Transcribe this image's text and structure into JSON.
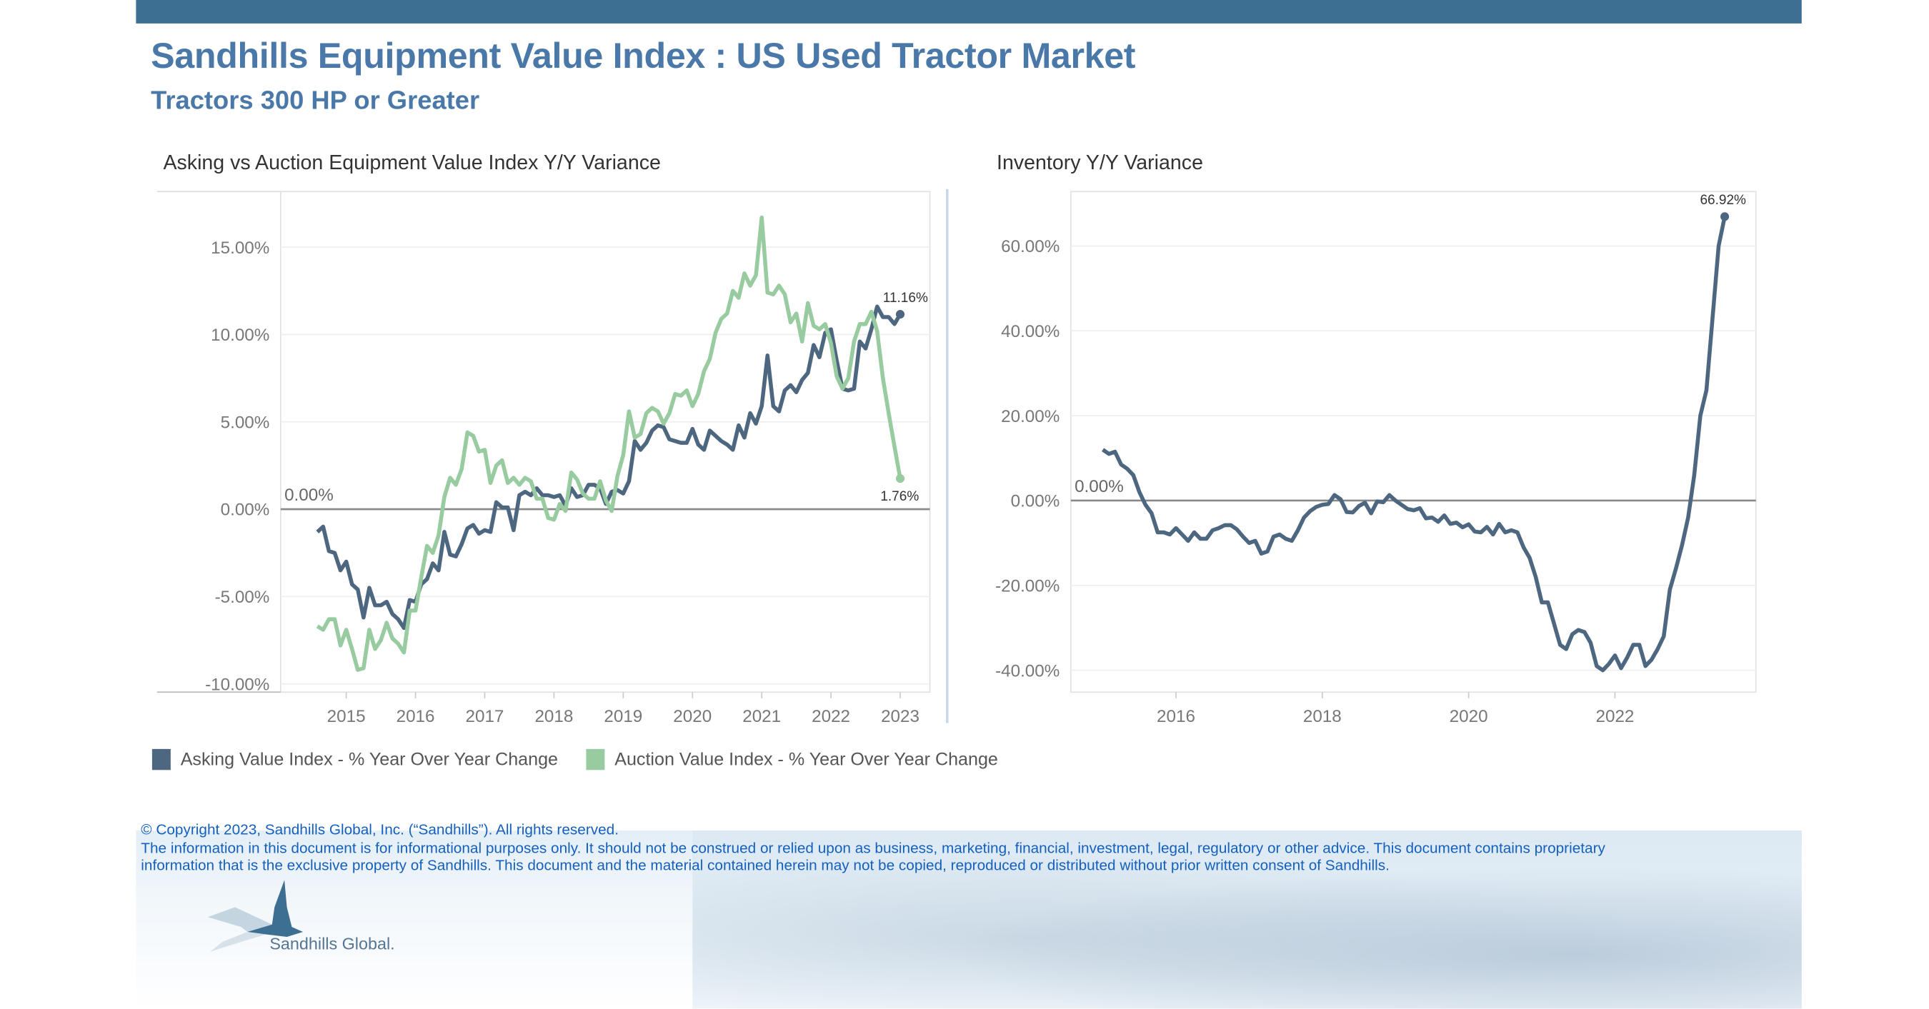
{
  "header": {
    "title": "Sandhills Equipment Value Index : US Used Tractor Market",
    "subtitle": "Tractors 300 HP or Greater"
  },
  "colors": {
    "topbar": "#3d6f93",
    "title": "#4a78a8",
    "asking": "#4e6780",
    "auction": "#98cba0",
    "footer_text": "#1560bd"
  },
  "legend": [
    {
      "label": "Asking Value Index - % Year Over Year Change",
      "color": "#4e6780"
    },
    {
      "label": "Auction Value Index - % Year Over Year Change",
      "color": "#98cba0"
    }
  ],
  "footer": {
    "copyright": "© Copyright 2023, Sandhills Global, Inc. (“Sandhills”). All rights reserved.",
    "line1": "The information in this document is for informational purposes only.  It should not be construed or relied upon as business, marketing, financial, investment, legal, regulatory or other advice. This document contains proprietary",
    "line2": "information that is the exclusive property of Sandhills. This document and the material contained herein may not be copied, reproduced or distributed without prior written consent of Sandhills.",
    "logo_text": "Sandhills Global."
  },
  "chart_data": [
    {
      "type": "line",
      "title": "Asking vs Auction Equipment Value Index Y/Y Variance",
      "xlabel": "",
      "ylabel": "",
      "ylim": [
        -10,
        17
      ],
      "xlim": [
        "2014-07",
        "2023-04"
      ],
      "x_ticks": [
        "2015",
        "2016",
        "2017",
        "2018",
        "2019",
        "2020",
        "2021",
        "2022",
        "2023"
      ],
      "y_ticks": [
        "15.00%",
        "10.00%",
        "5.00%",
        "0.00%",
        "-5.00%",
        "-10.00%"
      ],
      "y_tick_values": [
        15,
        10,
        5,
        0,
        -5,
        -10
      ],
      "reference_line": {
        "value": 0,
        "label": "0.00%"
      },
      "grid": true,
      "legend_position": "bottom-left",
      "start_month": "2014-08",
      "frequency": "monthly",
      "series": [
        {
          "name": "Asking Value Index - % Year Over Year Change",
          "end_label": "11.16%",
          "values": [
            -1.3,
            -1.0,
            -2.4,
            -2.5,
            -3.5,
            -3.0,
            -4.3,
            -4.6,
            -6.2,
            -4.5,
            -5.5,
            -5.5,
            -5.3,
            -6.0,
            -6.3,
            -6.8,
            -5.2,
            -5.3,
            -4.3,
            -4.0,
            -3.1,
            -3.5,
            -1.3,
            -2.6,
            -2.7,
            -2.0,
            -1.1,
            -0.9,
            -1.4,
            -1.2,
            -1.3,
            0.4,
            0.1,
            0.1,
            -1.2,
            0.8,
            1.0,
            0.8,
            1.2,
            0.8,
            0.8,
            0.7,
            0.8,
            0.2,
            1.2,
            0.7,
            0.8,
            1.4,
            1.4,
            1.2,
            0.3,
            1.0,
            1.1,
            0.9,
            1.6,
            3.9,
            3.4,
            3.8,
            4.5,
            4.8,
            4.7,
            4.0,
            3.9,
            3.8,
            3.8,
            4.6,
            3.7,
            3.4,
            4.5,
            4.2,
            3.9,
            3.7,
            3.4,
            4.8,
            4.1,
            5.5,
            4.9,
            5.9,
            8.8,
            5.9,
            5.6,
            6.8,
            7.1,
            6.7,
            7.4,
            7.8,
            9.4,
            8.7,
            10.1,
            10.3,
            8.5,
            6.9,
            6.8,
            6.9,
            9.6,
            9.2,
            10.3,
            11.6,
            11.0,
            11.0,
            10.6,
            11.16
          ]
        },
        {
          "name": "Auction Value Index - % Year Over Year Change",
          "end_label": "1.76%",
          "values": [
            -6.7,
            -6.9,
            -6.3,
            -6.3,
            -7.8,
            -6.9,
            -8.0,
            -9.2,
            -9.1,
            -6.9,
            -8.0,
            -7.5,
            -6.5,
            -7.4,
            -7.7,
            -8.2,
            -5.8,
            -5.8,
            -3.9,
            -2.1,
            -2.5,
            -1.5,
            0.7,
            1.8,
            1.4,
            2.3,
            4.4,
            4.2,
            3.3,
            3.4,
            1.5,
            2.5,
            2.8,
            1.5,
            1.8,
            1.4,
            1.8,
            1.6,
            0.6,
            0.6,
            -0.5,
            -0.6,
            0.3,
            -0.1,
            2.1,
            1.7,
            0.9,
            0.6,
            0.6,
            1.6,
            0.5,
            -0.1,
            1.9,
            3.1,
            5.6,
            4.1,
            4.3,
            5.5,
            5.8,
            5.6,
            4.9,
            5.5,
            6.6,
            6.5,
            6.8,
            5.9,
            6.6,
            7.9,
            8.6,
            10.1,
            10.9,
            11.2,
            12.5,
            12.1,
            13.5,
            12.8,
            13.4,
            16.7,
            12.4,
            12.3,
            12.8,
            12.3,
            10.7,
            11.2,
            9.6,
            11.8,
            10.5,
            10.3,
            10.6,
            9.5,
            7.6,
            6.9,
            7.5,
            9.6,
            10.6,
            10.6,
            11.3,
            10.2,
            7.5,
            5.5,
            3.6,
            1.76
          ]
        }
      ]
    },
    {
      "type": "line",
      "title": "Inventory Y/Y Variance",
      "xlabel": "",
      "ylabel": "",
      "ylim": [
        -45,
        73
      ],
      "xlim": [
        "2014-08",
        "2023-12"
      ],
      "x_ticks": [
        "2016",
        "2018",
        "2020",
        "2022"
      ],
      "y_ticks": [
        "60.00%",
        "40.00%",
        "20.00%",
        "0.00%",
        "-20.00%",
        "-40.00%"
      ],
      "y_tick_values": [
        60,
        40,
        20,
        0,
        -20,
        -40
      ],
      "reference_line": {
        "value": 0,
        "label": "0.00%"
      },
      "grid": true,
      "start_month": "2015-01",
      "frequency": "monthly",
      "series": [
        {
          "end_label": "66.92%",
          "values": [
            12,
            11,
            11.5,
            8.5,
            7.5,
            6,
            2,
            -1,
            -3,
            -7.5,
            -7.5,
            -8,
            -6.5,
            -8,
            -9.5,
            -7.5,
            -9,
            -9,
            -7,
            -6.5,
            -5.8,
            -5.8,
            -6.8,
            -8.5,
            -10,
            -9.5,
            -12.5,
            -12,
            -8.5,
            -8,
            -9,
            -9.5,
            -7,
            -4,
            -2.5,
            -1.5,
            -1,
            -0.8,
            1.3,
            0.3,
            -2.7,
            -2.8,
            -1.3,
            -0.5,
            -3,
            -0.2,
            -0.4,
            1.3,
            0,
            -1,
            -2,
            -2.3,
            -1.8,
            -4.2,
            -4,
            -5,
            -3.5,
            -5.5,
            -5.2,
            -6.3,
            -5.6,
            -7.3,
            -7.5,
            -6.2,
            -8,
            -5.5,
            -7.5,
            -7,
            -7.5,
            -11,
            -13.5,
            -18,
            -24,
            -24,
            -29,
            -34,
            -35,
            -31.5,
            -30.5,
            -31,
            -33.5,
            -39,
            -40,
            -38.5,
            -36.5,
            -39.5,
            -37,
            -34,
            -34,
            -39,
            -37.5,
            -35,
            -32,
            -21,
            -16,
            -10.5,
            -4,
            6,
            20,
            26,
            43,
            60,
            66.92
          ]
        }
      ]
    }
  ]
}
